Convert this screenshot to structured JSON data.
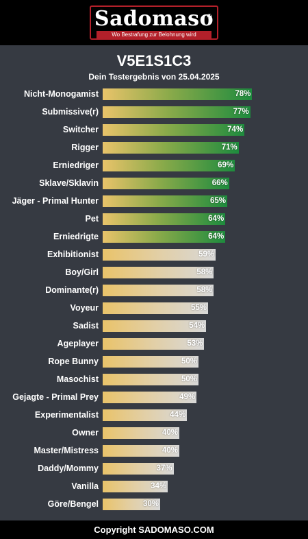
{
  "header": {
    "logo_text": "Sadomaso",
    "logo_tagline": "Wo Bestrafung zur Belohnung wird",
    "brand_color": "#b3202a"
  },
  "result": {
    "title": "V5E1S1C3",
    "subtitle": "Dein Testergebnis von 25.04.2025"
  },
  "chart_data": {
    "type": "bar",
    "orientation": "horizontal",
    "categories": [
      "Nicht-Monogamist",
      "Submissive(r)",
      "Switcher",
      "Rigger",
      "Erniedriger",
      "Sklave/Sklavin",
      "Jäger - Primal Hunter",
      "Pet",
      "Erniedrigte",
      "Exhibitionist",
      "Boy/Girl",
      "Dominante(r)",
      "Voyeur",
      "Sadist",
      "Ageplayer",
      "Rope Bunny",
      "Masochist",
      "Gejagte - Primal Prey",
      "Experimentalist",
      "Owner",
      "Master/Mistress",
      "Daddy/Mommy",
      "Vanilla",
      "Göre/Bengel"
    ],
    "values": [
      78,
      77,
      74,
      71,
      69,
      66,
      65,
      64,
      64,
      59,
      58,
      58,
      55,
      54,
      53,
      50,
      50,
      49,
      44,
      40,
      40,
      37,
      34,
      30
    ],
    "value_labels": [
      "78%",
      "77%",
      "74%",
      "71%",
      "69%",
      "66%",
      "65%",
      "64%",
      "64%",
      "59%",
      "58%",
      "58%",
      "55%",
      "54%",
      "53%",
      "50%",
      "50%",
      "49%",
      "44%",
      "40%",
      "40%",
      "37%",
      "34%",
      "30%"
    ],
    "xlim": [
      0,
      100
    ],
    "high_threshold": 60,
    "colors": {
      "high_start": "#e9c36a",
      "high_end": "#1e8b3e",
      "low_start": "#e9c36a",
      "low_end": "#d8d8d8"
    },
    "grid": false
  },
  "footer": {
    "text": "Copyright SADOMASO.COM"
  }
}
